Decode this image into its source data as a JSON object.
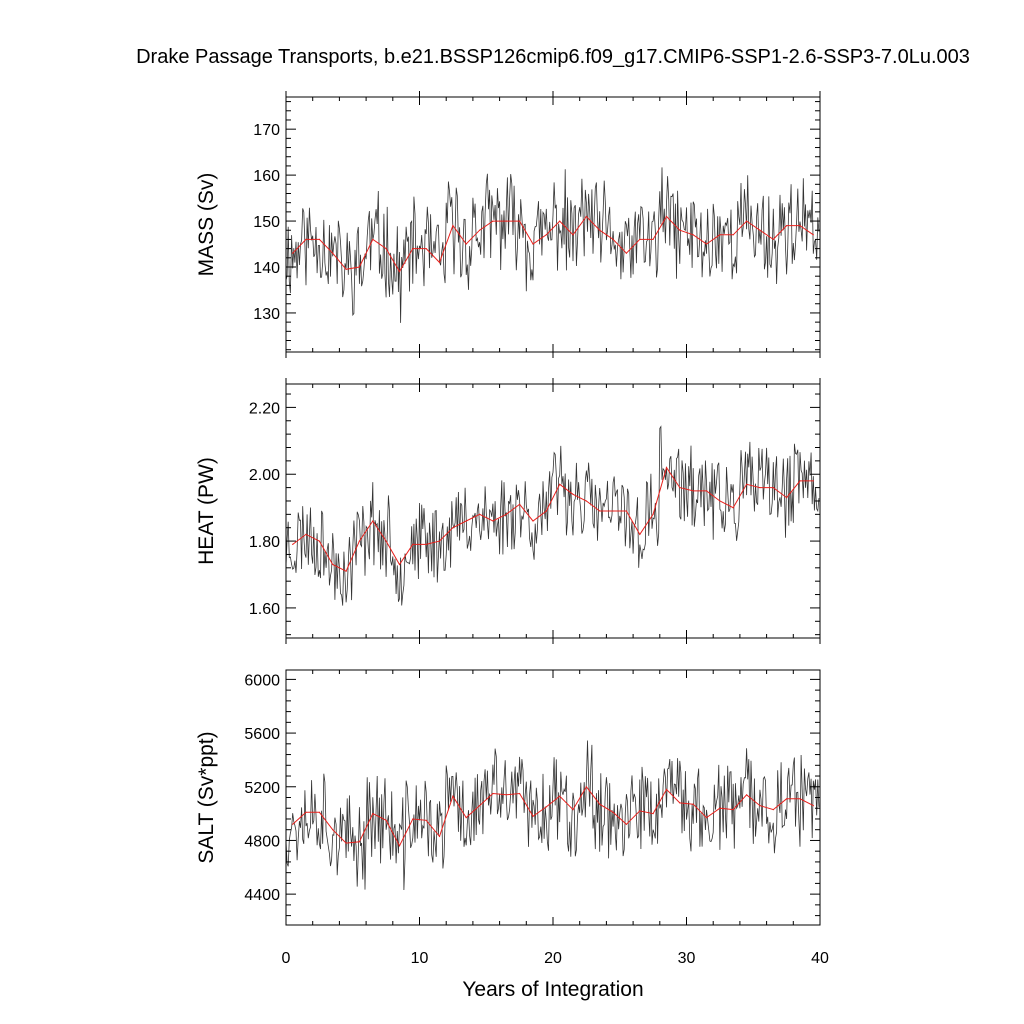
{
  "title": "Drake Passage Transports, b.e21.BSSP126cmip6.f09_g17.CMIP6-SSP1-2.6-SSP3-7.0Lu.003",
  "colors": {
    "raw": "#333333",
    "mean": "#e8201c",
    "axis": "#000000"
  },
  "chart_data": [
    {
      "type": "line",
      "ylabel": "MASS (Sv)",
      "xlabel": "",
      "xlim": [
        0,
        40
      ],
      "ylim": [
        121.5,
        177
      ],
      "xticks": [
        0,
        10,
        20,
        30,
        40
      ],
      "yticks": [
        130,
        140,
        150,
        160,
        170
      ],
      "ytick_labels": [
        "130",
        "140",
        "150",
        "160",
        "170"
      ],
      "series": [
        {
          "role": "monthly",
          "base": 146,
          "trend": 2,
          "amplitude": 9,
          "seed": 11
        },
        {
          "role": "annual_mean",
          "x": [
            0.5,
            1.5,
            2.5,
            3.5,
            4.5,
            5.5,
            6.5,
            7.5,
            8.5,
            9.5,
            10.5,
            11.5,
            12.5,
            13.5,
            14.5,
            15.5,
            16.5,
            17.5,
            18.5,
            19.5,
            20.5,
            21.5,
            22.5,
            23.5,
            24.5,
            25.5,
            26.5,
            27.5,
            28.5,
            29.5,
            30.5,
            31.5,
            32.5,
            33.5,
            34.5,
            35.5,
            36.5,
            37.5,
            38.5,
            39.5
          ],
          "values": [
            143,
            146,
            146,
            143,
            139.5,
            140,
            146,
            144,
            139,
            144,
            144,
            141,
            149,
            145,
            148,
            150,
            150,
            150,
            145,
            147,
            150,
            147,
            151,
            148,
            146,
            143,
            146,
            146,
            151,
            148,
            147,
            145,
            147,
            147,
            150,
            148,
            146,
            149,
            149,
            147
          ]
        }
      ]
    },
    {
      "type": "line",
      "ylabel": "HEAT (PW)",
      "xlabel": "",
      "xlim": [
        0,
        40
      ],
      "ylim": [
        1.51,
        2.27
      ],
      "xticks": [
        0,
        10,
        20,
        30,
        40
      ],
      "yticks": [
        1.6,
        1.8,
        2.0,
        2.2
      ],
      "ytick_labels": [
        "1.60",
        "1.80",
        "2.00",
        "2.20"
      ],
      "series": [
        {
          "role": "monthly",
          "base": 1.79,
          "trend": 0.17,
          "amplitude": 0.11,
          "seed": 23
        },
        {
          "role": "annual_mean",
          "x": [
            0.5,
            1.5,
            2.5,
            3.5,
            4.5,
            5.5,
            6.5,
            7.5,
            8.5,
            9.5,
            10.5,
            11.5,
            12.5,
            13.5,
            14.5,
            15.5,
            16.5,
            17.5,
            18.5,
            19.5,
            20.5,
            21.5,
            22.5,
            23.5,
            24.5,
            25.5,
            26.5,
            27.5,
            28.5,
            29.5,
            30.5,
            31.5,
            32.5,
            33.5,
            34.5,
            35.5,
            36.5,
            37.5,
            38.5,
            39.5
          ],
          "values": [
            1.79,
            1.82,
            1.8,
            1.73,
            1.71,
            1.8,
            1.86,
            1.8,
            1.73,
            1.79,
            1.79,
            1.8,
            1.84,
            1.86,
            1.88,
            1.86,
            1.88,
            1.91,
            1.86,
            1.89,
            1.97,
            1.94,
            1.92,
            1.89,
            1.89,
            1.89,
            1.82,
            1.88,
            2.02,
            1.96,
            1.95,
            1.95,
            1.92,
            1.9,
            1.97,
            1.96,
            1.96,
            1.93,
            1.98,
            1.98
          ]
        }
      ]
    },
    {
      "type": "line",
      "ylabel": "SALT (Sv*ppt)",
      "xlabel": "Years of Integration",
      "xlim": [
        0,
        40
      ],
      "ylim": [
        4170,
        6070
      ],
      "xticks": [
        0,
        10,
        20,
        30,
        40
      ],
      "xtick_labels": [
        "0",
        "10",
        "20",
        "30",
        "40"
      ],
      "yticks": [
        4400,
        4800,
        5200,
        5600,
        6000
      ],
      "ytick_labels": [
        "4400",
        "4800",
        "5200",
        "5600",
        "6000"
      ],
      "series": [
        {
          "role": "monthly",
          "base": 4990,
          "trend": 80,
          "amplitude": 300,
          "seed": 37
        },
        {
          "role": "annual_mean",
          "x": [
            0.5,
            1.5,
            2.5,
            3.5,
            4.5,
            5.5,
            6.5,
            7.5,
            8.5,
            9.5,
            10.5,
            11.5,
            12.5,
            13.5,
            14.5,
            15.5,
            16.5,
            17.5,
            18.5,
            19.5,
            20.5,
            21.5,
            22.5,
            23.5,
            24.5,
            25.5,
            26.5,
            27.5,
            28.5,
            29.5,
            30.5,
            31.5,
            32.5,
            33.5,
            34.5,
            35.5,
            36.5,
            37.5,
            38.5,
            39.5
          ],
          "values": [
            4920,
            5010,
            5010,
            4880,
            4780,
            4790,
            5000,
            4950,
            4760,
            4960,
            4950,
            4830,
            5130,
            4970,
            5060,
            5150,
            5140,
            5150,
            4980,
            5050,
            5130,
            5030,
            5200,
            5070,
            5010,
            4920,
            5020,
            5000,
            5180,
            5080,
            5070,
            4970,
            5040,
            5030,
            5140,
            5060,
            5030,
            5110,
            5110,
            5060
          ]
        }
      ]
    }
  ]
}
